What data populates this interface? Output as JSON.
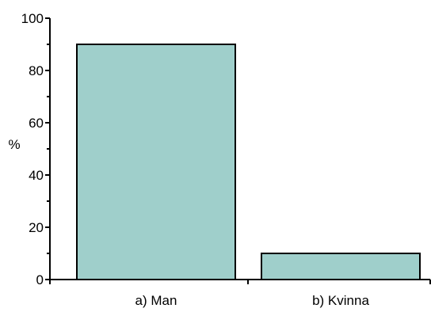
{
  "chart_data": {
    "type": "bar",
    "title": "",
    "xlabel": "",
    "ylabel": "%",
    "categories": [
      "a) Man",
      "b) Kvinna"
    ],
    "values": [
      90,
      10
    ],
    "ylim": [
      0,
      100
    ],
    "yticks": [
      0,
      20,
      40,
      60,
      80,
      100
    ],
    "ytick_labels": [
      "0",
      "20",
      "40",
      "60",
      "80",
      "100"
    ],
    "grid": false,
    "legend": "none",
    "bar_color": "#9fcfcb",
    "bar_edge_color": "#000000"
  }
}
